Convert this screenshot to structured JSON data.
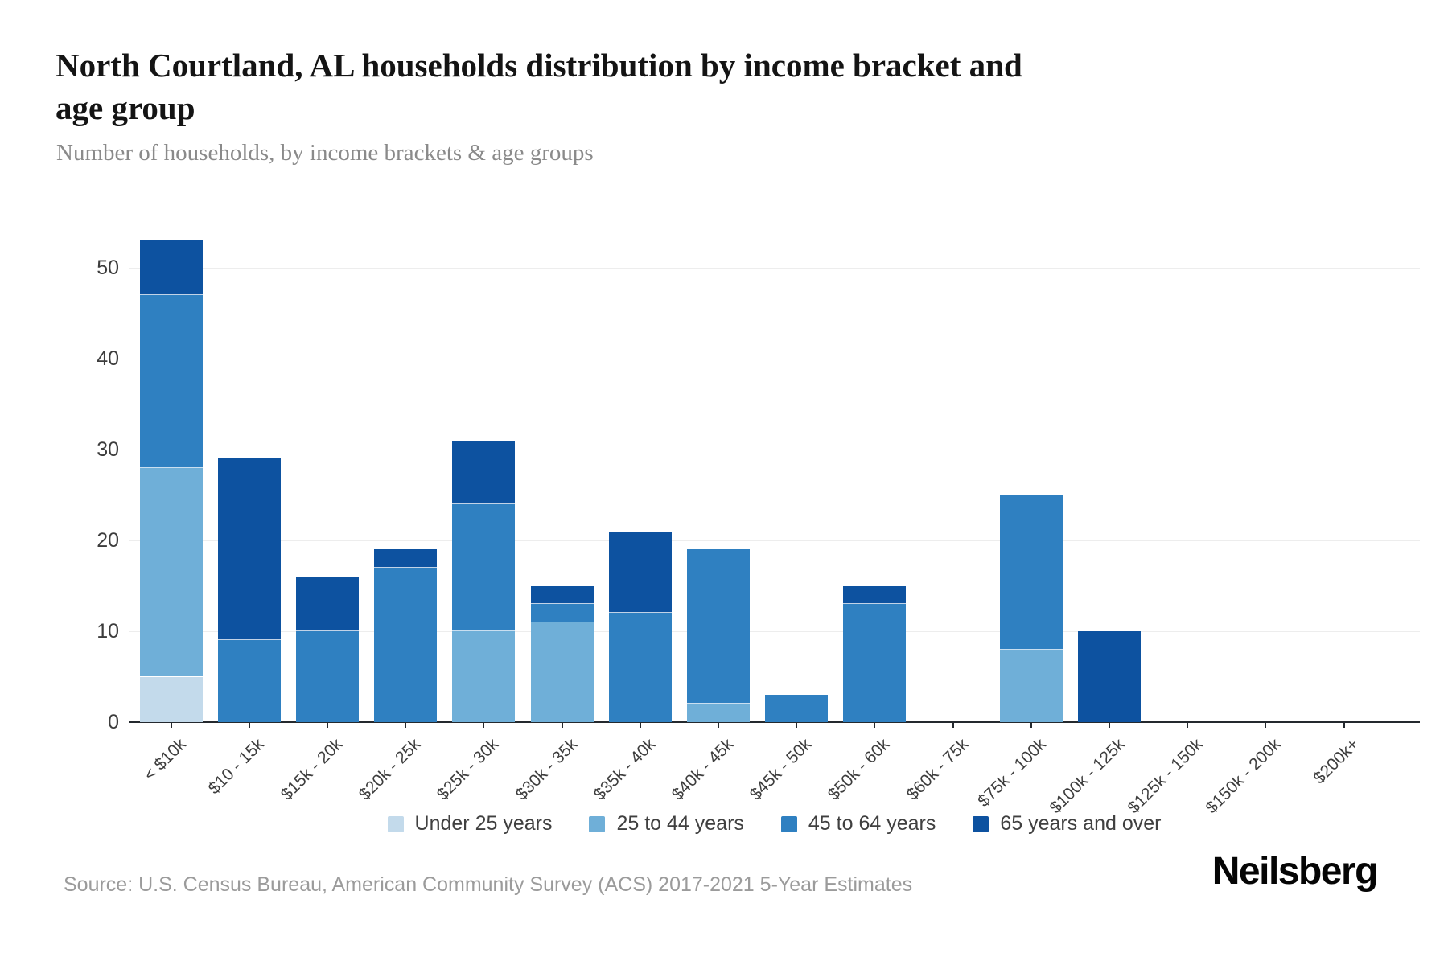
{
  "header": {
    "title_lines": [
      "North Courtland, AL households distribution by income bracket and",
      "age group"
    ],
    "subtitle": "Number of households, by income brackets & age groups"
  },
  "footer": {
    "source": "Source: U.S. Census Bureau, American Community Survey (ACS) 2017-2021 5-Year Estimates",
    "logo": "Neilsberg"
  },
  "colors": {
    "under_25": "#c3daeb",
    "age_25_44": "#6fafd8",
    "age_45_64": "#2f80c1",
    "age_65_over": "#0d52a0",
    "gridline": "#ededed",
    "axis": "#24292e",
    "title_text": "#141414",
    "muted_text": "#8a8a8a"
  },
  "chart_data": {
    "type": "bar",
    "stacked": true,
    "title": "North Courtland, AL households distribution by income bracket and age group",
    "subtitle": "Number of households, by income brackets & age groups",
    "xlabel": "",
    "ylabel": "",
    "grid": true,
    "legend_position": "bottom",
    "ylim": [
      0,
      55
    ],
    "yticks": [
      0,
      10,
      20,
      30,
      40,
      50
    ],
    "categories": [
      "< $10k",
      "$10 - 15k",
      "$15k - 20k",
      "$20k - 25k",
      "$25k - 30k",
      "$30k - 35k",
      "$35k - 40k",
      "$40k - 45k",
      "$45k - 50k",
      "$50k - 60k",
      "$60k - 75k",
      "$75k - 100k",
      "$100k - 125k",
      "$125k - 150k",
      "$150k - 200k",
      "$200k+"
    ],
    "series": [
      {
        "name": "Under 25 years",
        "color": "#c3daeb",
        "values": [
          5,
          0,
          0,
          0,
          0,
          0,
          0,
          0,
          0,
          0,
          0,
          0,
          0,
          0,
          0,
          0
        ]
      },
      {
        "name": "25 to 44 years",
        "color": "#6fafd8",
        "values": [
          23,
          0,
          0,
          0,
          10,
          11,
          0,
          2,
          0,
          0,
          0,
          8,
          0,
          0,
          0,
          0
        ]
      },
      {
        "name": "45 to 64 years",
        "color": "#2f80c1",
        "values": [
          19,
          9,
          10,
          17,
          14,
          2,
          12,
          17,
          3,
          13,
          0,
          17,
          0,
          0,
          0,
          0
        ]
      },
      {
        "name": "65 years and over",
        "color": "#0d52a0",
        "values": [
          6,
          20,
          6,
          2,
          7,
          2,
          9,
          0,
          0,
          2,
          0,
          0,
          10,
          0,
          0,
          0
        ]
      }
    ],
    "stack_totals": [
      53,
      29,
      16,
      19,
      31,
      15,
      21,
      19,
      3,
      15,
      0,
      25,
      10,
      0,
      0,
      0
    ]
  }
}
